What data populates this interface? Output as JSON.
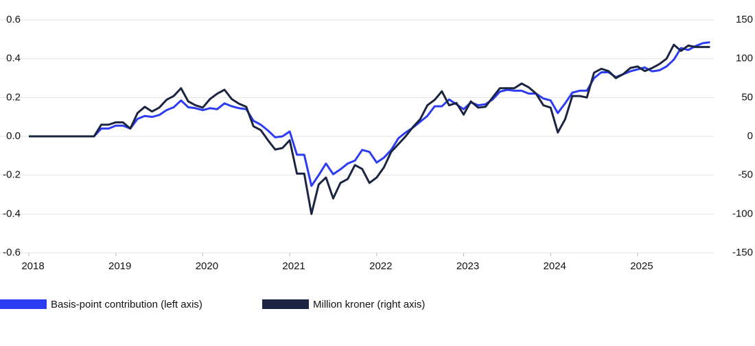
{
  "chart_data": {
    "type": "line",
    "x": [
      2018,
      2018.083,
      2018.167,
      2018.25,
      2018.333,
      2018.417,
      2018.5,
      2018.583,
      2018.667,
      2018.75,
      2018.833,
      2018.917,
      2019,
      2019.083,
      2019.167,
      2019.25,
      2019.333,
      2019.417,
      2019.5,
      2019.583,
      2019.667,
      2019.75,
      2019.833,
      2019.917,
      2020,
      2020.083,
      2020.167,
      2020.25,
      2020.333,
      2020.417,
      2020.5,
      2020.583,
      2020.667,
      2020.75,
      2020.833,
      2020.917,
      2021,
      2021.083,
      2021.167,
      2021.25,
      2021.333,
      2021.417,
      2021.5,
      2021.583,
      2021.667,
      2021.75,
      2021.833,
      2021.917,
      2022,
      2022.083,
      2022.167,
      2022.25,
      2022.333,
      2022.417,
      2022.5,
      2022.583,
      2022.667,
      2022.75,
      2022.833,
      2022.917,
      2023,
      2023.083,
      2023.167,
      2023.25,
      2023.333,
      2023.417,
      2023.5,
      2023.583,
      2023.667,
      2023.75,
      2023.833,
      2023.917,
      2024,
      2024.083,
      2024.167,
      2024.25,
      2024.333,
      2024.417,
      2024.5,
      2024.583,
      2024.667,
      2024.75,
      2024.833,
      2024.917,
      2025,
      2025.083,
      2025.167,
      2025.25,
      2025.333,
      2025.417,
      2025.5,
      2025.583,
      2025.667,
      2025.75,
      2025.833
    ],
    "series": [
      {
        "name": "Basis-point contribution (left axis)",
        "color": "#2b3cf2",
        "axis": "y",
        "values": [
          0,
          0,
          0,
          0,
          0,
          0,
          0,
          0,
          0,
          0,
          0.04,
          0.04,
          0.055,
          0.055,
          0.04,
          0.09,
          0.105,
          0.1,
          0.11,
          0.135,
          0.15,
          0.185,
          0.15,
          0.145,
          0.135,
          0.145,
          0.14,
          0.17,
          0.155,
          0.145,
          0.14,
          0.08,
          0.06,
          0.03,
          -0.005,
          0,
          0.025,
          -0.095,
          -0.095,
          -0.255,
          -0.2,
          -0.14,
          -0.195,
          -0.17,
          -0.14,
          -0.125,
          -0.07,
          -0.08,
          -0.135,
          -0.11,
          -0.07,
          -0.01,
          0.02,
          0.045,
          0.075,
          0.105,
          0.155,
          0.155,
          0.19,
          0.165,
          0.14,
          0.175,
          0.16,
          0.165,
          0.19,
          0.23,
          0.24,
          0.235,
          0.235,
          0.22,
          0.22,
          0.195,
          0.185,
          0.12,
          0.17,
          0.225,
          0.235,
          0.235,
          0.3,
          0.33,
          0.33,
          0.305,
          0.32,
          0.335,
          0.345,
          0.355,
          0.335,
          0.34,
          0.36,
          0.395,
          0.455,
          0.445,
          0.465,
          0.48,
          0.485
        ]
      },
      {
        "name": "Million kroner (right axis)",
        "color": "#1b2440",
        "axis": "y2",
        "values": [
          0,
          0,
          0,
          0,
          0,
          0,
          0,
          0,
          0,
          0,
          15,
          15,
          18,
          18,
          10,
          30,
          38,
          32,
          37,
          47,
          52,
          62,
          45,
          40,
          37,
          48,
          55,
          60,
          48,
          42,
          38,
          13,
          8,
          -5,
          -17,
          -15,
          -5,
          -48,
          -48,
          -100,
          -62,
          -53,
          -80,
          -60,
          -55,
          -37,
          -42,
          -60,
          -53,
          -40,
          -20,
          -10,
          0,
          12,
          22,
          40,
          47,
          58,
          40,
          43,
          28,
          45,
          37,
          38,
          50,
          62,
          62,
          62,
          68,
          63,
          55,
          40,
          37,
          5,
          22,
          52,
          52,
          50,
          82,
          87,
          84,
          75,
          80,
          88,
          90,
          84,
          88,
          93,
          100,
          118,
          110,
          117,
          115,
          115,
          115
        ]
      }
    ],
    "xlim": [
      2018,
      2026
    ],
    "xticks": [
      2018,
      2019,
      2020,
      2021,
      2022,
      2023,
      2024,
      2025
    ],
    "ylim": [
      -0.6,
      0.6
    ],
    "yticks": [
      0.6,
      0.4,
      0.2,
      {
        "value": 0,
        "label": "0.0"
      },
      -0.2,
      -0.4,
      -0.6
    ],
    "y2lim": [
      -150,
      150
    ],
    "y2ticks": [
      150,
      100,
      50,
      0,
      -50,
      -100,
      -150
    ],
    "grid": true
  }
}
